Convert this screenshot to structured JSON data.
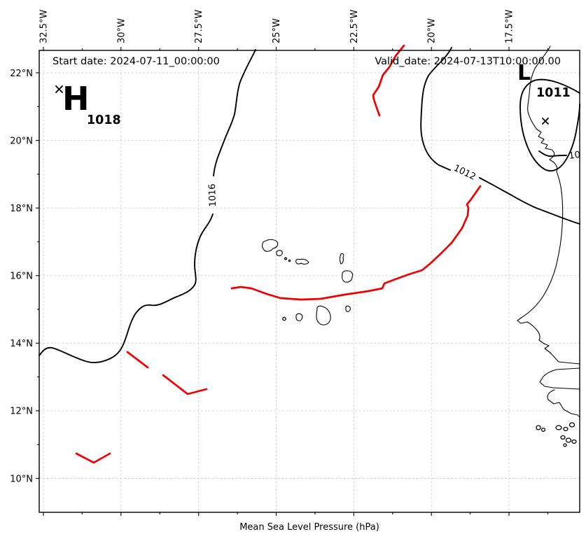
{
  "header": {
    "start_date": "Start date: 2024-07-11_00:00:00",
    "valid_date": "Valid_date: 2024-07-13T10:00:00.00"
  },
  "axes": {
    "lon_ticks": [
      "32.5°W",
      "30°W",
      "27.5°W",
      "25°W",
      "22.5°W",
      "20°W",
      "17.5°W"
    ],
    "lat_ticks": [
      "22°N",
      "20°N",
      "18°N",
      "16°N",
      "14°N",
      "12°N",
      "10°N"
    ],
    "xlabel": "Mean Sea Level Pressure (hPa)"
  },
  "pressure_centers": {
    "high": {
      "symbol": "H",
      "value": "1018"
    },
    "low": {
      "symbol": "L",
      "value": "1011"
    }
  },
  "isobar_labels": {
    "i1016": "1016",
    "i1012": "1012",
    "edge": "10"
  },
  "colors": {
    "front": "#f10000",
    "contour": "#000000",
    "grid": "#cccccc"
  },
  "map_data": {
    "type": "mean-sea-level-pressure-contour-map",
    "variable": "Mean Sea Level Pressure (hPa)",
    "lon_range_deg_west": [
      32.5,
      17.5
    ],
    "lat_range_deg_north": [
      10,
      22
    ],
    "isobars_hpa": [
      1016,
      1012,
      1011
    ],
    "pressure_centers": [
      {
        "type": "high",
        "value_hpa": 1018,
        "approx_lon": "32°W",
        "approx_lat": "21.5°N"
      },
      {
        "type": "low",
        "value_hpa": 1011,
        "approx_lon": "16.3°W",
        "approx_lat": "20.6°N"
      }
    ],
    "fronts": [
      {
        "style": "solid",
        "description": "short red trough segment near 21-22.2°N, 21.5-22°W"
      },
      {
        "style": "solid",
        "description": "long red trough from 26.4°W 15.7°N through Cape Verde islands rising to 18.4°W 18.8°N"
      },
      {
        "style": "dashed",
        "description": "red dashed trough segments near 12.5-13.7°N, 27-29.7°W"
      },
      {
        "style": "solid",
        "description": "red chevron segment near 10.5-10.8°N, 30.5-31.5°W"
      }
    ],
    "geography": [
      "Cape Verde islands",
      "West African coastline (Western Sahara to Guinea-Bissau)"
    ]
  }
}
